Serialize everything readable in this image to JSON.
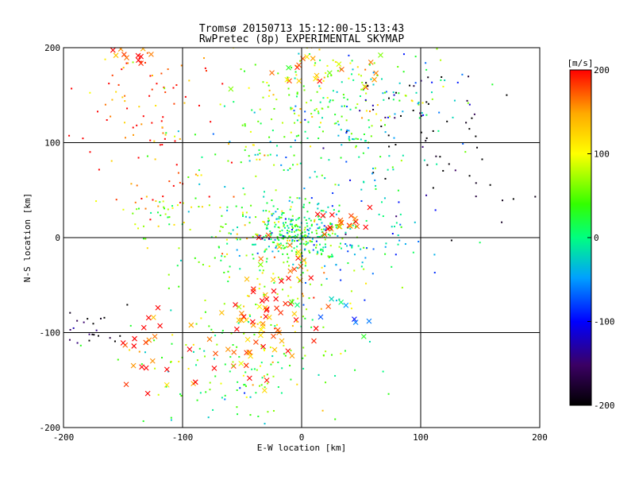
{
  "chart_data": {
    "type": "scatter",
    "title": "Tromsø 20150713 15:12:00-15:13:43",
    "subtitle": "RwPretec (8p) EXPERIMENTAL SKYMAP",
    "xlabel": "E-W location [km]",
    "ylabel": "N-S location [km]",
    "xlim": [
      -200,
      200
    ],
    "ylim": [
      -200,
      200
    ],
    "xticks": [
      -200,
      -100,
      0,
      100,
      200
    ],
    "yticks": [
      -200,
      -100,
      0,
      100,
      200
    ],
    "gridlines": [
      -100,
      0,
      100
    ],
    "grid": true,
    "colorbar": {
      "label": "[m/s]",
      "range": [
        -200,
        200
      ],
      "ticks": [
        200,
        100,
        0,
        -100,
        -200
      ],
      "colors": [
        "#000000",
        "#3b0064",
        "#0000ff",
        "#00a0ff",
        "#00ff80",
        "#33ff00",
        "#ffff00",
        "#ffaa00",
        "#ff0000"
      ]
    },
    "clusters": [
      {
        "cx": -145,
        "cy": 190,
        "sx": 12,
        "sy": 6,
        "n": 12,
        "v": 190,
        "mark": "x"
      },
      {
        "cx": -150,
        "cy": 130,
        "sx": 28,
        "sy": 35,
        "n": 55,
        "v": 180,
        "mark": "dot"
      },
      {
        "cx": -110,
        "cy": 60,
        "sx": 25,
        "sy": 30,
        "n": 30,
        "v": 170,
        "mark": "dot"
      },
      {
        "cx": -110,
        "cy": 150,
        "sx": 20,
        "sy": 30,
        "n": 25,
        "v": 190,
        "mark": "dot"
      },
      {
        "cx": -115,
        "cy": 25,
        "sx": 20,
        "sy": 12,
        "n": 30,
        "v": 70,
        "mark": "dot"
      },
      {
        "cx": 15,
        "cy": 150,
        "sx": 45,
        "sy": 30,
        "n": 160,
        "v": 60,
        "mark": "dot"
      },
      {
        "cx": 20,
        "cy": 170,
        "sx": 30,
        "sy": 15,
        "n": 25,
        "v": 130,
        "mark": "x"
      },
      {
        "cx": 100,
        "cy": 130,
        "sx": 30,
        "sy": 30,
        "n": 45,
        "v": -180,
        "mark": "dot"
      },
      {
        "cx": 140,
        "cy": 55,
        "sx": 25,
        "sy": 25,
        "n": 20,
        "v": -200,
        "mark": "dot"
      },
      {
        "cx": 90,
        "cy": 150,
        "sx": 30,
        "sy": 25,
        "n": 30,
        "v": -40,
        "mark": "dot"
      },
      {
        "cx": 40,
        "cy": 95,
        "sx": 40,
        "sy": 40,
        "n": 100,
        "v": -10,
        "mark": "dot"
      },
      {
        "cx": -50,
        "cy": 90,
        "sx": 35,
        "sy": 30,
        "n": 55,
        "v": 30,
        "mark": "dot"
      },
      {
        "cx": -5,
        "cy": 5,
        "sx": 22,
        "sy": 14,
        "n": 320,
        "v": 10,
        "mark": "dot"
      },
      {
        "cx": 30,
        "cy": 15,
        "sx": 15,
        "sy": 10,
        "n": 20,
        "v": 180,
        "mark": "x"
      },
      {
        "cx": 50,
        "cy": -10,
        "sx": 40,
        "sy": 25,
        "n": 70,
        "v": -30,
        "mark": "dot"
      },
      {
        "cx": -70,
        "cy": 0,
        "sx": 40,
        "sy": 30,
        "n": 60,
        "v": 50,
        "mark": "dot"
      },
      {
        "cx": -30,
        "cy": -60,
        "sx": 20,
        "sy": 30,
        "n": 45,
        "v": 180,
        "mark": "x"
      },
      {
        "cx": -20,
        "cy": -60,
        "sx": 35,
        "sy": 40,
        "n": 90,
        "v": 90,
        "mark": "dot"
      },
      {
        "cx": -40,
        "cy": -110,
        "sx": 30,
        "sy": 20,
        "n": 40,
        "v": 170,
        "mark": "x"
      },
      {
        "cx": -50,
        "cy": -140,
        "sx": 45,
        "sy": 30,
        "n": 130,
        "v": 40,
        "mark": "dot"
      },
      {
        "cx": 25,
        "cy": -75,
        "sx": 15,
        "sy": 12,
        "n": 10,
        "v": -40,
        "mark": "x"
      },
      {
        "cx": -175,
        "cy": -98,
        "sx": 18,
        "sy": 10,
        "n": 25,
        "v": -200,
        "mark": "dot"
      },
      {
        "cx": -130,
        "cy": -115,
        "sx": 18,
        "sy": 20,
        "n": 20,
        "v": 190,
        "mark": "x"
      }
    ]
  }
}
